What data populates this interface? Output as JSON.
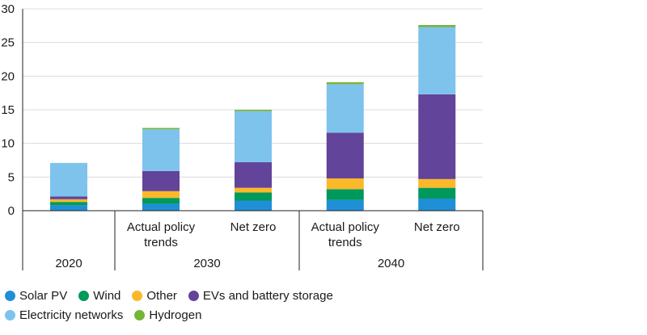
{
  "chart_data": {
    "type": "bar",
    "stacked": true,
    "ylim": [
      0,
      30
    ],
    "yticks": [
      0,
      5,
      10,
      15,
      20,
      25,
      30
    ],
    "grid": "horizontal",
    "groups": [
      {
        "label": "2020",
        "categories": [
          ""
        ]
      },
      {
        "label": "2030",
        "categories": [
          "Actual policy trends",
          "Net zero"
        ]
      },
      {
        "label": "2040",
        "categories": [
          "Actual policy trends",
          "Net zero"
        ]
      }
    ],
    "category_lines": [
      [
        [
          ""
        ]
      ],
      [
        [
          "Actual policy",
          "trends"
        ],
        [
          "Net zero"
        ]
      ],
      [
        [
          "Actual policy",
          "trends"
        ],
        [
          "Net zero"
        ]
      ]
    ],
    "series": [
      {
        "name": "Solar PV",
        "color": "#1f8fd6",
        "values": [
          0.8,
          1.0,
          1.5,
          1.6,
          1.8
        ]
      },
      {
        "name": "Wind",
        "color": "#00995c",
        "values": [
          0.5,
          0.9,
          1.2,
          1.6,
          1.6
        ]
      },
      {
        "name": "Other",
        "color": "#fbb829",
        "values": [
          0.4,
          1.0,
          0.7,
          1.6,
          1.3
        ]
      },
      {
        "name": "EVs and battery storage",
        "color": "#62449a",
        "values": [
          0.4,
          3.0,
          3.8,
          6.8,
          12.6
        ]
      },
      {
        "name": "Electricity networks",
        "color": "#7ec3ec",
        "values": [
          5.0,
          6.2,
          7.6,
          7.2,
          10.0
        ]
      },
      {
        "name": "Hydrogen",
        "color": "#77b538",
        "values": [
          0.0,
          0.2,
          0.2,
          0.3,
          0.3
        ]
      }
    ]
  }
}
